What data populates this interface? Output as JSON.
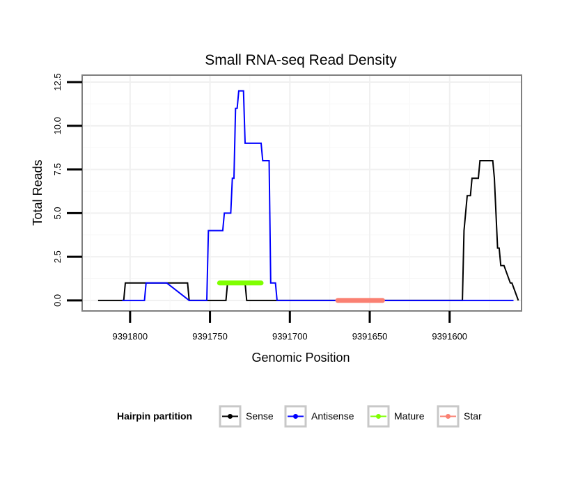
{
  "chart_data": {
    "type": "line",
    "title": "Small RNA-seq Read Density",
    "xlabel": "Genomic Position",
    "ylabel": "Total Reads",
    "x_reversed": true,
    "xlim": [
      9391830,
      9391555
    ],
    "ylim": [
      -0.6,
      12.9
    ],
    "x_ticks": [
      9391800,
      9391750,
      9391700,
      9391650,
      9391600
    ],
    "x_tick_labels": [
      "9391800",
      "9391750",
      "9391700",
      "9391650",
      "9391600"
    ],
    "y_ticks": [
      0,
      2.5,
      5,
      7.5,
      10,
      12.5
    ],
    "y_tick_labels": [
      "0.0",
      "2.5",
      "5.0",
      "7.5",
      "10.0",
      "12.5"
    ],
    "grid": true,
    "legend": {
      "title": "Hairpin partition",
      "position": "bottom",
      "entries": [
        {
          "label": "Sense",
          "color": "#000000"
        },
        {
          "label": "Antisense",
          "color": "#0000ff"
        },
        {
          "label": "Mature",
          "color": "#7fff00"
        },
        {
          "label": "Star",
          "color": "#fa8072"
        }
      ]
    },
    "series": [
      {
        "name": "Sense",
        "color": "#000000",
        "width": 2,
        "x": [
          9391820,
          9391804,
          9391803,
          9391778,
          9391777,
          9391764,
          9391763,
          9391752,
          9391751,
          9391740,
          9391739,
          9391728,
          9391727,
          9391592,
          9391591,
          9391590,
          9391589,
          9391588,
          9391587,
          9391586,
          9391582,
          9391581,
          9391573,
          9391572,
          9391571,
          9391570,
          9391569,
          9391568,
          9391567,
          9391566,
          9391562,
          9391561,
          9391557
        ],
        "y": [
          0,
          0,
          1,
          1,
          1,
          1,
          0,
          0,
          0,
          0,
          1,
          1,
          0,
          0,
          4,
          5,
          6,
          6,
          6,
          7,
          7,
          8,
          8,
          7,
          5,
          3,
          3,
          2,
          2,
          2,
          1,
          1,
          0
        ]
      },
      {
        "name": "Antisense",
        "color": "#0000ff",
        "width": 2,
        "x": [
          9391805,
          9391791,
          9391790,
          9391777,
          9391763,
          9391752,
          9391751,
          9391742,
          9391741,
          9391737,
          9391736,
          9391735,
          9391734,
          9391733,
          9391732,
          9391731,
          9391729,
          9391728,
          9391725,
          9391724,
          9391718,
          9391717,
          9391713,
          9391712,
          9391709,
          9391708,
          9391703,
          9391580,
          9391560
        ],
        "y": [
          0,
          0,
          1,
          1,
          0,
          0,
          4,
          4,
          5,
          5,
          7,
          7,
          11,
          11,
          12,
          12,
          12,
          9,
          9,
          9,
          9,
          8,
          8,
          1,
          1,
          0,
          0,
          0,
          0
        ]
      },
      {
        "name": "Mature",
        "color": "#7fff00",
        "width": 7,
        "x": [
          9391744,
          9391718
        ],
        "y": [
          1,
          1
        ]
      },
      {
        "name": "Star",
        "color": "#fa8072",
        "width": 7,
        "x": [
          9391670,
          9391642
        ],
        "y": [
          0,
          0
        ]
      }
    ]
  }
}
